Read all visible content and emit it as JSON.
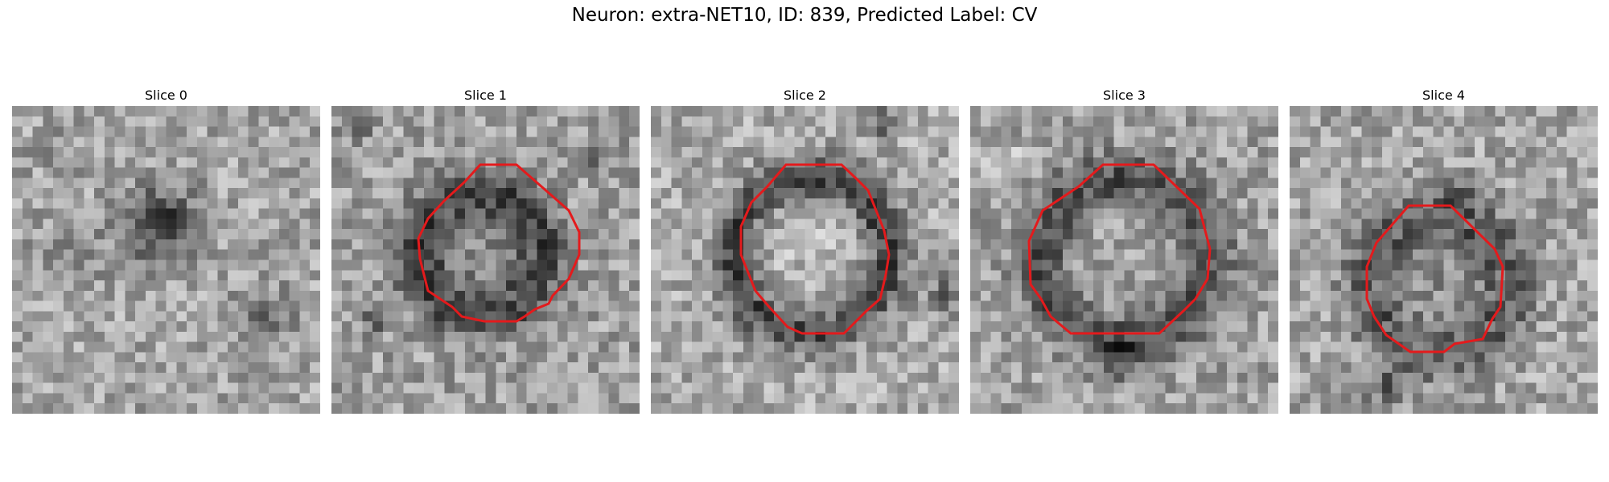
{
  "figure": {
    "title": "Neuron: extra-NET10, ID: 839, Predicted Label: CV",
    "overlay_color": "#e41a1c",
    "colormap": "gray"
  },
  "panels": [
    {
      "label": "Slice 0",
      "has_contour": false
    },
    {
      "label": "Slice 1",
      "has_contour": true
    },
    {
      "label": "Slice 2",
      "has_contour": true
    },
    {
      "label": "Slice 3",
      "has_contour": true
    },
    {
      "label": "Slice 4",
      "has_contour": true
    }
  ]
}
